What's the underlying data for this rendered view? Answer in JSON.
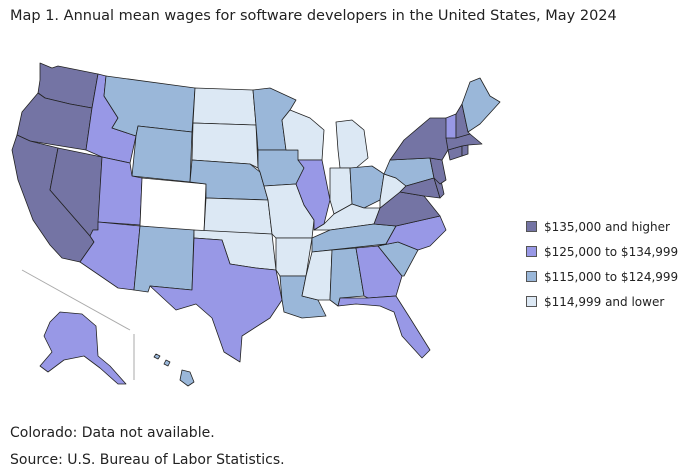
{
  "title": "Map 1. Annual mean wages for software developers in the United States, May 2024",
  "colors": {
    "highest": "#7474a4",
    "high": "#9898e6",
    "mid": "#9ab7d9",
    "low": "#dce8f4",
    "na": "#ffffff"
  },
  "legend": [
    {
      "label": "$135,000 and higher",
      "color": "#7474a4"
    },
    {
      "label": "$125,000 to $134,999",
      "color": "#9898e6"
    },
    {
      "label": "$115,000 to $124,999",
      "color": "#9ab7d9"
    },
    {
      "label": "$114,999 and lower",
      "color": "#dce8f4"
    }
  ],
  "footnote": "Colorado: Data not available.",
  "source": "Source: U.S. Bureau of Labor Statistics."
}
